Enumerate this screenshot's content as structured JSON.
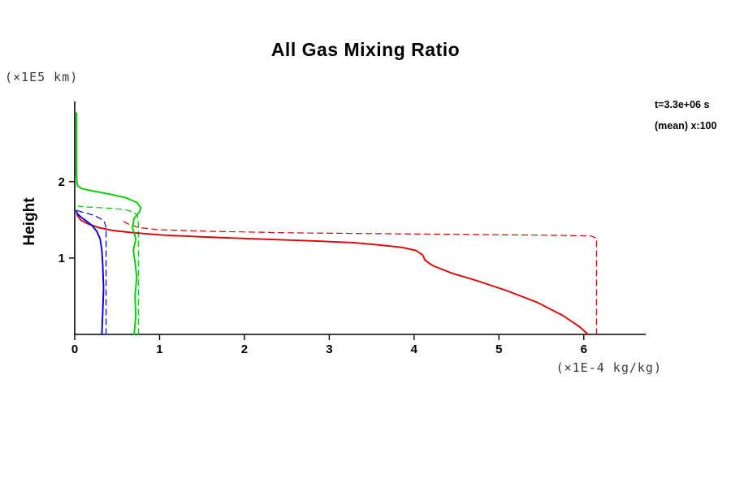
{
  "chart_data": {
    "type": "line",
    "title": "All Gas Mixing Ratio",
    "ylabel": "Height",
    "y_unit": "(×1E5 km)",
    "x_unit": "(×1E-4 kg/kg)",
    "annotations": [
      "t=3.3e+06 s",
      "(mean) x:100"
    ],
    "xlim": [
      0,
      6.73
    ],
    "ylim": [
      0,
      3.05
    ],
    "x_ticks": [
      0,
      1,
      2,
      3,
      4,
      5,
      6
    ],
    "y_ticks": [
      1,
      2
    ],
    "grid": false,
    "legend": "none",
    "series": [
      {
        "name": "red-dashed",
        "color": "#d40000",
        "style": "dashed",
        "points": [
          [
            6.15,
            0.0
          ],
          [
            6.15,
            1.26
          ],
          [
            6.08,
            1.29
          ],
          [
            5.5,
            1.3
          ],
          [
            4.5,
            1.31
          ],
          [
            3.5,
            1.32
          ],
          [
            2.5,
            1.33
          ],
          [
            1.6,
            1.35
          ],
          [
            1.0,
            1.37
          ],
          [
            0.75,
            1.4
          ],
          [
            0.62,
            1.45
          ],
          [
            0.55,
            1.5
          ]
        ]
      },
      {
        "name": "green-dashed",
        "color": "#00c400",
        "style": "dashed",
        "points": [
          [
            0.75,
            0.0
          ],
          [
            0.75,
            1.45
          ],
          [
            0.74,
            1.55
          ],
          [
            0.7,
            1.6
          ],
          [
            0.6,
            1.63
          ],
          [
            0.45,
            1.65
          ],
          [
            0.28,
            1.66
          ],
          [
            0.12,
            1.67
          ],
          [
            0.04,
            1.68
          ]
        ]
      },
      {
        "name": "blue-dashed",
        "color": "#0000c8",
        "style": "dashed",
        "points": [
          [
            0.37,
            0.0
          ],
          [
            0.37,
            1.4
          ],
          [
            0.35,
            1.47
          ],
          [
            0.3,
            1.52
          ],
          [
            0.22,
            1.56
          ],
          [
            0.13,
            1.59
          ],
          [
            0.06,
            1.61
          ],
          [
            0.02,
            1.63
          ]
        ]
      },
      {
        "name": "red-solid",
        "color": "#e10000",
        "style": "solid",
        "points": [
          [
            6.05,
            0.0
          ],
          [
            5.95,
            0.1
          ],
          [
            5.75,
            0.25
          ],
          [
            5.45,
            0.42
          ],
          [
            5.1,
            0.57
          ],
          [
            4.75,
            0.7
          ],
          [
            4.45,
            0.8
          ],
          [
            4.22,
            0.9
          ],
          [
            4.13,
            0.97
          ],
          [
            4.1,
            1.04
          ],
          [
            4.02,
            1.1
          ],
          [
            3.85,
            1.14
          ],
          [
            3.6,
            1.17
          ],
          [
            3.3,
            1.2
          ],
          [
            2.9,
            1.22
          ],
          [
            2.4,
            1.24
          ],
          [
            1.9,
            1.26
          ],
          [
            1.45,
            1.28
          ],
          [
            1.05,
            1.3
          ],
          [
            0.7,
            1.33
          ],
          [
            0.45,
            1.36
          ],
          [
            0.28,
            1.4
          ],
          [
            0.15,
            1.45
          ],
          [
            0.07,
            1.5
          ],
          [
            0.03,
            1.56
          ]
        ]
      },
      {
        "name": "green-solid",
        "color": "#00cf00",
        "style": "solid",
        "points": [
          [
            0.7,
            0.0
          ],
          [
            0.72,
            0.25
          ],
          [
            0.71,
            0.5
          ],
          [
            0.73,
            0.75
          ],
          [
            0.71,
            0.95
          ],
          [
            0.69,
            1.1
          ],
          [
            0.72,
            1.25
          ],
          [
            0.68,
            1.4
          ],
          [
            0.7,
            1.52
          ],
          [
            0.76,
            1.6
          ],
          [
            0.78,
            1.66
          ],
          [
            0.73,
            1.73
          ],
          [
            0.6,
            1.79
          ],
          [
            0.4,
            1.84
          ],
          [
            0.2,
            1.88
          ],
          [
            0.08,
            1.91
          ],
          [
            0.03,
            1.95
          ],
          [
            0.02,
            2.1
          ],
          [
            0.02,
            2.5
          ],
          [
            0.02,
            2.9
          ]
        ]
      },
      {
        "name": "blue-solid",
        "color": "#0000e1",
        "style": "solid",
        "points": [
          [
            0.32,
            0.0
          ],
          [
            0.33,
            0.3
          ],
          [
            0.34,
            0.6
          ],
          [
            0.33,
            0.9
          ],
          [
            0.32,
            1.1
          ],
          [
            0.3,
            1.25
          ],
          [
            0.26,
            1.35
          ],
          [
            0.2,
            1.43
          ],
          [
            0.13,
            1.49
          ],
          [
            0.07,
            1.54
          ],
          [
            0.03,
            1.58
          ],
          [
            0.02,
            1.62
          ]
        ]
      }
    ]
  }
}
